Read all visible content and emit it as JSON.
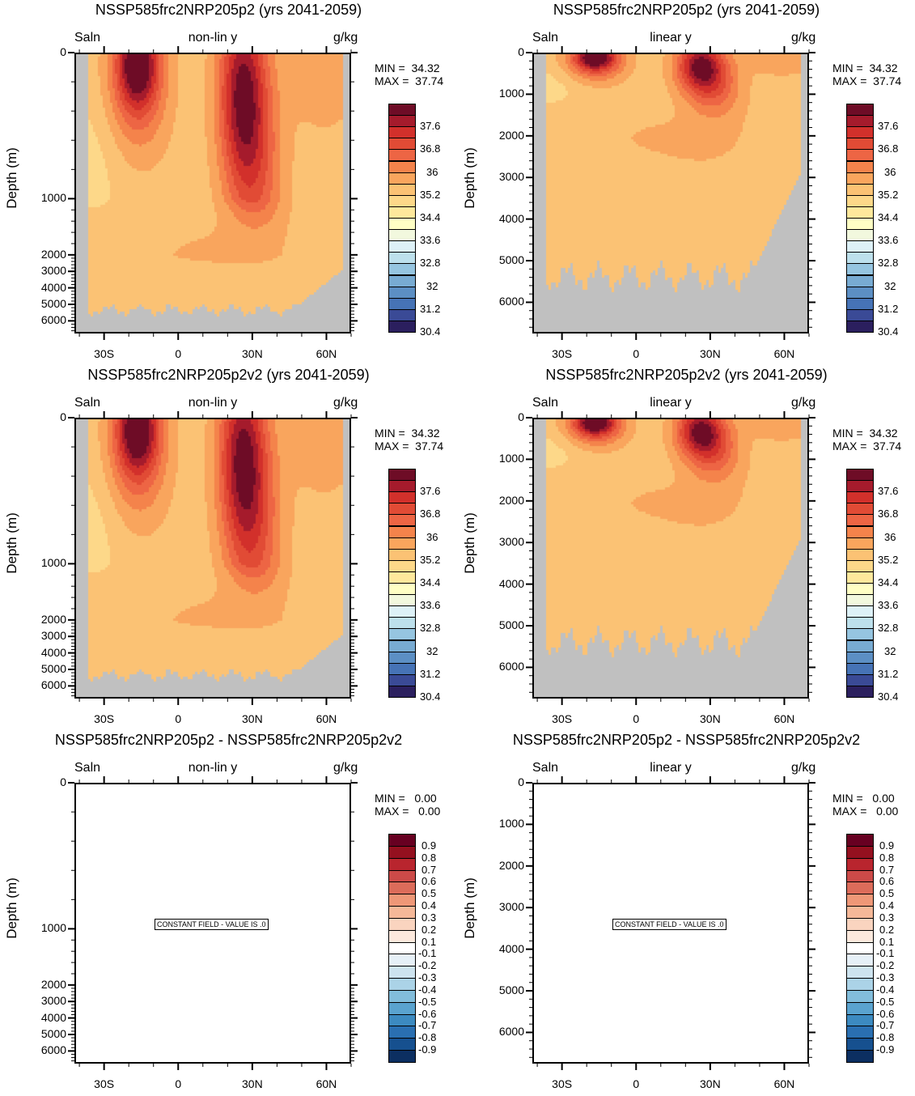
{
  "chart_data": [
    {
      "type": "heatmap",
      "title": "NSSP585frc2NRP205p2 (yrs 2041-2059)",
      "left_label": "Saln",
      "center_label": "non-lin y",
      "right_label": "g/kg",
      "ylabel": "Depth (m)",
      "y_scale": "non-linear",
      "yticks": [
        "0",
        "1000",
        "2000",
        "3000",
        "4000",
        "5000",
        "6000"
      ],
      "xticks": [
        "30S",
        "0",
        "30N",
        "60N"
      ],
      "min_text": "MIN =  34.32",
      "max_text": "MAX =  37.74",
      "colorbar_labels": [
        "37.6",
        "36.8",
        "36",
        "35.2",
        "34.4",
        "33.6",
        "32.8",
        "32",
        "31.2",
        "30.4"
      ],
      "field": "salinity"
    },
    {
      "type": "heatmap",
      "title": "NSSP585frc2NRP205p2 (yrs 2041-2059)",
      "left_label": "Saln",
      "center_label": "linear y",
      "right_label": "g/kg",
      "ylabel": "Depth (m)",
      "y_scale": "linear",
      "yticks": [
        "0",
        "1000",
        "2000",
        "3000",
        "4000",
        "5000",
        "6000"
      ],
      "xticks": [
        "30S",
        "0",
        "30N",
        "60N"
      ],
      "min_text": "MIN =  34.32",
      "max_text": "MAX =  37.74",
      "colorbar_labels": [
        "37.6",
        "36.8",
        "36",
        "35.2",
        "34.4",
        "33.6",
        "32.8",
        "32",
        "31.2",
        "30.4"
      ],
      "field": "salinity"
    },
    {
      "type": "heatmap",
      "title": "NSSP585frc2NRP205p2v2 (yrs 2041-2059)",
      "left_label": "Saln",
      "center_label": "non-lin y",
      "right_label": "g/kg",
      "ylabel": "Depth (m)",
      "y_scale": "non-linear",
      "yticks": [
        "0",
        "1000",
        "2000",
        "3000",
        "4000",
        "5000",
        "6000"
      ],
      "xticks": [
        "30S",
        "0",
        "30N",
        "60N"
      ],
      "min_text": "MIN =  34.32",
      "max_text": "MAX =  37.74",
      "colorbar_labels": [
        "37.6",
        "36.8",
        "36",
        "35.2",
        "34.4",
        "33.6",
        "32.8",
        "32",
        "31.2",
        "30.4"
      ],
      "field": "salinity"
    },
    {
      "type": "heatmap",
      "title": "NSSP585frc2NRP205p2v2 (yrs 2041-2059)",
      "left_label": "Saln",
      "center_label": "linear y",
      "right_label": "g/kg",
      "ylabel": "Depth (m)",
      "y_scale": "linear",
      "yticks": [
        "0",
        "1000",
        "2000",
        "3000",
        "4000",
        "5000",
        "6000"
      ],
      "xticks": [
        "30S",
        "0",
        "30N",
        "60N"
      ],
      "min_text": "MIN =  34.32",
      "max_text": "MAX =  37.74",
      "colorbar_labels": [
        "37.6",
        "36.8",
        "36",
        "35.2",
        "34.4",
        "33.6",
        "32.8",
        "32",
        "31.2",
        "30.4"
      ],
      "field": "salinity"
    },
    {
      "type": "heatmap",
      "title": "NSSP585frc2NRP205p2 - NSSP585frc2NRP205p2v2",
      "left_label": "Saln",
      "center_label": "non-lin y",
      "right_label": "g/kg",
      "ylabel": "Depth (m)",
      "y_scale": "non-linear",
      "yticks": [
        "0",
        "1000",
        "2000",
        "3000",
        "4000",
        "5000",
        "6000"
      ],
      "xticks": [
        "30S",
        "0",
        "30N",
        "60N"
      ],
      "min_text": "MIN =   0.00",
      "max_text": "MAX =   0.00",
      "colorbar_labels": [
        "0.9",
        "0.8",
        "0.7",
        "0.6",
        "0.5",
        "0.4",
        "0.3",
        "0.2",
        "0.1",
        "-0.1",
        "-0.2",
        "-0.3",
        "-0.4",
        "-0.5",
        "-0.6",
        "-0.7",
        "-0.8",
        "-0.9"
      ],
      "field": "difference",
      "annotation": "CONSTANT FIELD - VALUE IS .0"
    },
    {
      "type": "heatmap",
      "title": "NSSP585frc2NRP205p2 - NSSP585frc2NRP205p2v2",
      "left_label": "Saln",
      "center_label": "linear y",
      "right_label": "g/kg",
      "ylabel": "Depth (m)",
      "y_scale": "linear",
      "yticks": [
        "0",
        "1000",
        "2000",
        "3000",
        "4000",
        "5000",
        "6000"
      ],
      "xticks": [
        "30S",
        "0",
        "30N",
        "60N"
      ],
      "min_text": "MIN =   0.00",
      "max_text": "MAX =   0.00",
      "colorbar_labels": [
        "0.9",
        "0.8",
        "0.7",
        "0.6",
        "0.5",
        "0.4",
        "0.3",
        "0.2",
        "0.1",
        "-0.1",
        "-0.2",
        "-0.3",
        "-0.4",
        "-0.5",
        "-0.6",
        "-0.7",
        "-0.8",
        "-0.9"
      ],
      "field": "difference",
      "annotation": "CONSTANT FIELD - VALUE IS .0"
    }
  ],
  "colors": {
    "salinity_levels": [
      "#2b1f5e",
      "#3a4a96",
      "#4673b6",
      "#5c8fc4",
      "#78abd2",
      "#96c5e0",
      "#bde0ec",
      "#ddf1f7",
      "#f2f8de",
      "#ffffc4",
      "#fee89c",
      "#fdd889",
      "#fbc274",
      "#f9a55d",
      "#f4834b",
      "#ed6544",
      "#e14b35",
      "#d2302b",
      "#a51b2c",
      "#6e0c26"
    ],
    "diff_levels": [
      "#0c2f61",
      "#16508f",
      "#2a6fb1",
      "#3c8ac0",
      "#5aa3cf",
      "#82bddb",
      "#abd3e7",
      "#cde3ef",
      "#e6f0f7",
      "#ffffff",
      "#fde9dd",
      "#fad4bf",
      "#f5b898",
      "#ee9777",
      "#dc6c5a",
      "#cc4a48",
      "#b9252e",
      "#94101f",
      "#670021"
    ],
    "land": "#c0c0c0"
  }
}
